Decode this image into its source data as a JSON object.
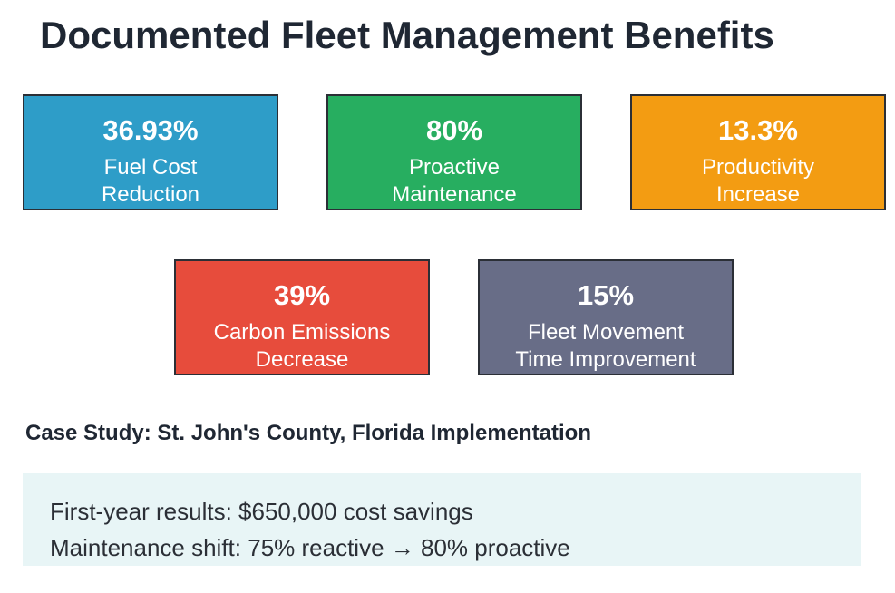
{
  "title": "Documented Fleet Management Benefits",
  "cards": [
    {
      "value": "36.93%",
      "label_line1": "Fuel Cost",
      "label_line2": "Reduction",
      "color": "#2e9dc8"
    },
    {
      "value": "80%",
      "label_line1": "Proactive",
      "label_line2": "Maintenance",
      "color": "#27ae60"
    },
    {
      "value": "13.3%",
      "label_line1": "Productivity",
      "label_line2": "Increase",
      "color": "#f39c12"
    },
    {
      "value": "39%",
      "label_line1": "Carbon Emissions",
      "label_line2": "Decrease",
      "color": "#e74c3c"
    },
    {
      "value": "15%",
      "label_line1": "Fleet Movement",
      "label_line2": "Time Improvement",
      "color": "#686d87"
    }
  ],
  "case_study": {
    "title": "Case Study: St. John's County, Florida Implementation",
    "lines": [
      "First-year results: $650,000 cost savings",
      "Maintenance shift: 75% reactive → 80% proactive"
    ],
    "background": "#e8f5f6"
  }
}
